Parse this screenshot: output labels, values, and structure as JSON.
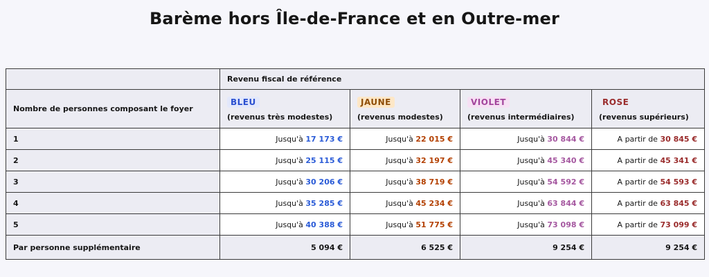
{
  "title": "Barème hors Île-de-France et en Outre-mer",
  "table": {
    "header_top": "Revenu fiscal de référence",
    "header_left": "Nombre de personnes composant le foyer",
    "categories": [
      {
        "badge": "BLEU",
        "sub": "(revenus très modestes)",
        "color": "#2a4fd0"
      },
      {
        "badge": "JAUNE",
        "sub": "(revenus modestes)",
        "color": "#8f4e08"
      },
      {
        "badge": "VIOLET",
        "sub": "(revenus intermédiaires)",
        "color": "#a3459c"
      },
      {
        "badge": "ROSE",
        "sub": "(revenus supérieurs)",
        "color": "#9a2c2c"
      }
    ],
    "rows": [
      {
        "label": "1",
        "cells": [
          {
            "prefix": "Jusqu'à",
            "value": "17 173 €"
          },
          {
            "prefix": "Jusqu'à",
            "value": "22 015 €"
          },
          {
            "prefix": "Jusqu'à",
            "value": "30 844 €"
          },
          {
            "prefix": "A partir de",
            "value": "30 845 €"
          }
        ]
      },
      {
        "label": "2",
        "cells": [
          {
            "prefix": "Jusqu'à",
            "value": "25 115 €"
          },
          {
            "prefix": "Jusqu'à",
            "value": "32 197 €"
          },
          {
            "prefix": "Jusqu'à",
            "value": "45 340 €"
          },
          {
            "prefix": "A partir de",
            "value": "45 341 €"
          }
        ]
      },
      {
        "label": "3",
        "cells": [
          {
            "prefix": "Jusqu'à",
            "value": "30 206 €"
          },
          {
            "prefix": "Jusqu'à",
            "value": "38 719 €"
          },
          {
            "prefix": "Jusqu'à",
            "value": "54 592 €"
          },
          {
            "prefix": "A partir de",
            "value": "54 593 €"
          }
        ]
      },
      {
        "label": "4",
        "cells": [
          {
            "prefix": "Jusqu'à",
            "value": "35 285 €"
          },
          {
            "prefix": "Jusqu'à",
            "value": "45 234 €"
          },
          {
            "prefix": "Jusqu'à",
            "value": "63 844 €"
          },
          {
            "prefix": "A partir de",
            "value": "63 845 €"
          }
        ]
      },
      {
        "label": "5",
        "cells": [
          {
            "prefix": "Jusqu'à",
            "value": "40 388 €"
          },
          {
            "prefix": "Jusqu'à",
            "value": "51 775 €"
          },
          {
            "prefix": "Jusqu'à",
            "value": "73 098 €"
          },
          {
            "prefix": "A partir de",
            "value": "73 099 €"
          }
        ]
      }
    ],
    "footer": {
      "label": "Par personne supplémentaire",
      "values": [
        "5 094 €",
        "6 525 €",
        "9 254 €",
        "9 254 €"
      ]
    }
  }
}
